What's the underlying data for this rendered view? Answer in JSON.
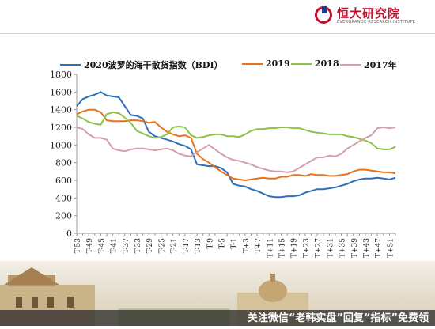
{
  "header": {
    "logo_text": "恒大研究院",
    "logo_sub": "EVERGRANDE RESEARCH INSTITUTE"
  },
  "footer": {
    "watermark": "关注微信“老韩实盘”回复“指标”免费领"
  },
  "colors": {
    "s2020": "#2e6fba",
    "s2019": "#e8711c",
    "s2018": "#8bc34a",
    "s2017": "#d4a0a8",
    "brand": "#c8102e"
  },
  "chart_data": {
    "type": "line",
    "title": "",
    "xlabel": "",
    "ylabel": "",
    "ylim": [
      0,
      1800
    ],
    "yticks": [
      0,
      200,
      400,
      600,
      800,
      1000,
      1200,
      1400,
      1600,
      1800
    ],
    "grid": false,
    "legend_position": "top",
    "x": [
      "T-53",
      "T-51",
      "T-49",
      "T-47",
      "T-45",
      "T-43",
      "T-41",
      "T-39",
      "T-37",
      "T-35",
      "T-33",
      "T-31",
      "T-29",
      "T-27",
      "T-25",
      "T-23",
      "T-21",
      "T-19",
      "T-17",
      "T-15",
      "T-13",
      "T-11",
      "T-9",
      "T-7",
      "T-5",
      "T-3",
      "T-1",
      "T+1",
      "T+3",
      "T+5",
      "T+7",
      "T+9",
      "T+11",
      "T+13",
      "T+15",
      "T+17",
      "T+19",
      "T+21",
      "T+23",
      "T+25",
      "T+27",
      "T+29",
      "T+31",
      "T+33",
      "T+35",
      "T+37",
      "T+39",
      "T+41",
      "T+43",
      "T+45",
      "T+47",
      "T+49",
      "T+51",
      "T+53"
    ],
    "xtick_labels": [
      "T-53",
      "T-49",
      "T-45",
      "T-41",
      "T-37",
      "T-33",
      "T-29",
      "T-25",
      "T-21",
      "T-17",
      "T-13",
      "T-9",
      "T-5",
      "T-1",
      "T+3",
      "T+7",
      "T+11",
      "T+15",
      "T+19",
      "T+23",
      "T+27",
      "T+31",
      "T+35",
      "T+39",
      "T+43",
      "T+47",
      "T+51"
    ],
    "series": [
      {
        "name": "2020波罗的海干散货指数（BDI）",
        "color": "#2e6fba",
        "values": [
          1440,
          1520,
          1550,
          1570,
          1600,
          1560,
          1550,
          1540,
          1440,
          1340,
          1330,
          1300,
          1150,
          1100,
          1080,
          1060,
          1040,
          1010,
          990,
          950,
          780,
          770,
          760,
          760,
          740,
          690,
          560,
          540,
          530,
          500,
          480,
          450,
          420,
          410,
          410,
          420,
          420,
          430,
          460,
          480,
          500,
          500,
          510,
          520,
          540,
          560,
          590,
          610,
          620,
          620,
          630,
          620,
          610,
          630
        ]
      },
      {
        "name": "2019",
        "color": "#e8711c",
        "values": [
          1350,
          1380,
          1400,
          1400,
          1370,
          1280,
          1270,
          1270,
          1270,
          1280,
          1280,
          1270,
          1250,
          1260,
          1200,
          1150,
          1120,
          1100,
          1110,
          1080,
          900,
          840,
          800,
          750,
          700,
          660,
          620,
          610,
          600,
          610,
          620,
          630,
          620,
          620,
          640,
          640,
          660,
          660,
          650,
          670,
          660,
          660,
          650,
          650,
          660,
          670,
          700,
          720,
          720,
          710,
          700,
          690,
          690,
          680
        ]
      },
      {
        "name": "2018",
        "color": "#8bc34a",
        "values": [
          1330,
          1300,
          1260,
          1240,
          1230,
          1350,
          1370,
          1360,
          1310,
          1250,
          1160,
          1130,
          1100,
          1080,
          1090,
          1120,
          1200,
          1210,
          1200,
          1110,
          1080,
          1090,
          1110,
          1120,
          1120,
          1100,
          1100,
          1090,
          1120,
          1160,
          1180,
          1180,
          1190,
          1190,
          1200,
          1200,
          1190,
          1190,
          1170,
          1150,
          1140,
          1130,
          1120,
          1120,
          1120,
          1100,
          1090,
          1070,
          1050,
          1020,
          960,
          950,
          950,
          980
        ]
      },
      {
        "name": "2017年",
        "color": "#d4a0a8",
        "values": [
          1200,
          1180,
          1120,
          1080,
          1080,
          1060,
          960,
          940,
          930,
          950,
          960,
          960,
          950,
          940,
          950,
          960,
          940,
          900,
          880,
          870,
          920,
          960,
          1000,
          950,
          900,
          860,
          830,
          820,
          800,
          780,
          750,
          730,
          710,
          700,
          700,
          690,
          700,
          740,
          780,
          820,
          860,
          860,
          880,
          870,
          900,
          960,
          1000,
          1040,
          1080,
          1110,
          1190,
          1200,
          1190,
          1200
        ]
      }
    ]
  }
}
